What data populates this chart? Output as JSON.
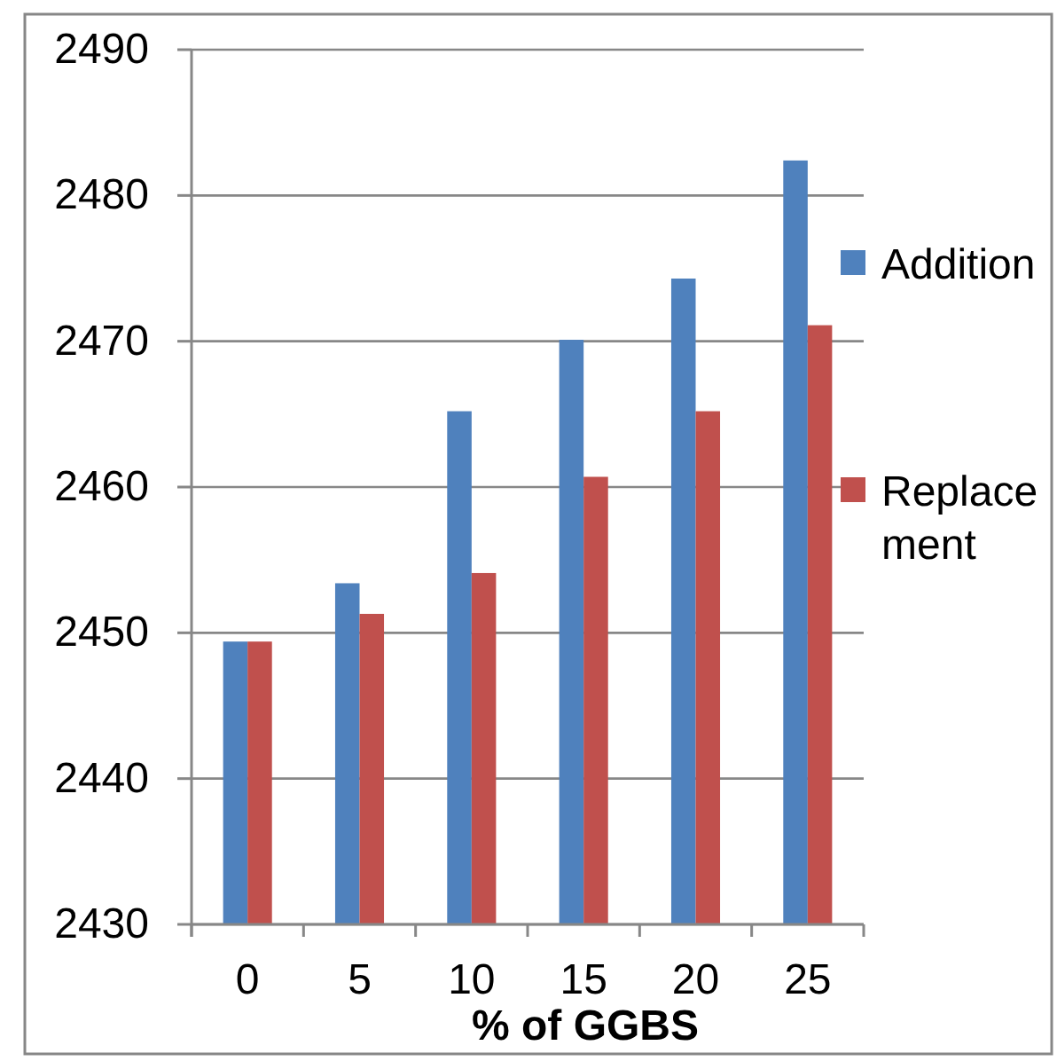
{
  "chart_data": {
    "type": "bar",
    "categories": [
      "0",
      "5",
      "10",
      "15",
      "20",
      "25"
    ],
    "xlabel": "% of GGBS",
    "series": [
      {
        "name": "Addition",
        "color": "#4f81bd",
        "values": [
          2449.4,
          2453.4,
          2465.2,
          2470.1,
          2474.3,
          2482.4
        ]
      },
      {
        "name": "Replacement",
        "color": "#c0504d",
        "values": [
          2449.4,
          2451.3,
          2454.1,
          2460.7,
          2465.2,
          2471.1
        ]
      }
    ],
    "ylim": [
      2430,
      2490
    ],
    "yticks": [
      2430,
      2440,
      2450,
      2460,
      2470,
      2480,
      2490
    ],
    "grid": "y",
    "legend": "right"
  }
}
